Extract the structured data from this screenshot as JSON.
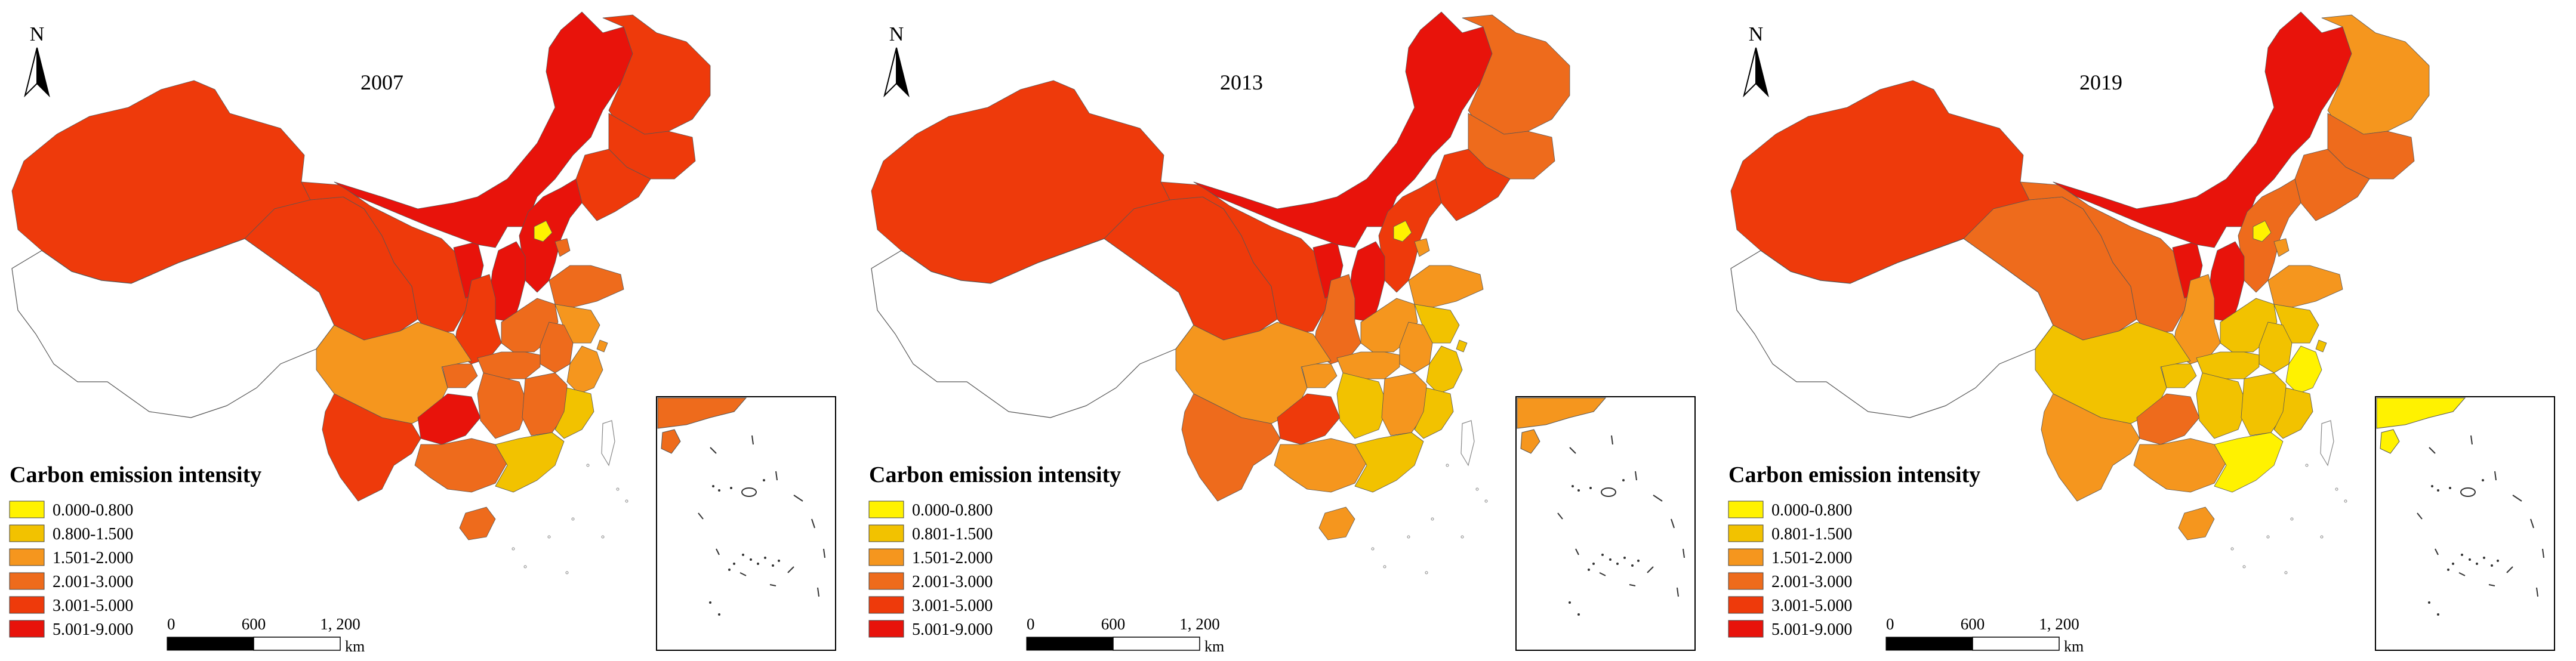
{
  "colors": {
    "c1": "#FFF200",
    "c2": "#F2C200",
    "c3": "#F5961E",
    "c4": "#EE6B1C",
    "c5": "#EE3A0B",
    "c6": "#E8130B",
    "outline": "#555555",
    "no_data": "#ffffff"
  },
  "north_label": "N",
  "scale": {
    "labels": [
      "0",
      "600",
      "1, 200"
    ],
    "unit": "km"
  },
  "panels": [
    {
      "year": "2007",
      "legend_title": "Carbon emission intensity",
      "legend_items": [
        {
          "label": "0.000-0.800",
          "color": "c1"
        },
        {
          "label": "0.800-1.500",
          "color": "c2"
        },
        {
          "label": "1.501-2.000",
          "color": "c3"
        },
        {
          "label": "2.001-3.000",
          "color": "c4"
        },
        {
          "label": "3.001-5.000",
          "color": "c5"
        },
        {
          "label": "5.001-9.000",
          "color": "c6"
        }
      ],
      "regions": {
        "xinjiang": "c5",
        "tibet": "no_data",
        "qinghai": "c5",
        "gansu": "c5",
        "ningxia": "c6",
        "inner_mongolia": "c6",
        "heilongjiang": "c5",
        "jilin": "c5",
        "liaoning": "c5",
        "hebei": "c6",
        "beijing": "c1",
        "tianjin": "c4",
        "shanxi": "c6",
        "shaanxi": "c5",
        "shandong": "c4",
        "henan": "c4",
        "jiangsu": "c3",
        "anhui": "c4",
        "hubei": "c4",
        "zhejiang": "c3",
        "shanghai": "c3",
        "sichuan": "c3",
        "chongqing": "c4",
        "guizhou": "c6",
        "yunnan": "c5",
        "hunan": "c4",
        "jiangxi": "c4",
        "fujian": "c2",
        "guangxi": "c4",
        "guangdong": "c2",
        "hainan": "c4",
        "inset_south": "c4"
      }
    },
    {
      "year": "2013",
      "legend_title": "Carbon emission intensity",
      "legend_items": [
        {
          "label": "0.000-0.800",
          "color": "c1"
        },
        {
          "label": "0.801-1.500",
          "color": "c2"
        },
        {
          "label": "1.501-2.000",
          "color": "c3"
        },
        {
          "label": "2.001-3.000",
          "color": "c4"
        },
        {
          "label": "3.001-5.000",
          "color": "c5"
        },
        {
          "label": "5.001-9.000",
          "color": "c6"
        }
      ],
      "regions": {
        "xinjiang": "c5",
        "tibet": "no_data",
        "qinghai": "c5",
        "gansu": "c5",
        "ningxia": "c6",
        "inner_mongolia": "c6",
        "heilongjiang": "c4",
        "jilin": "c4",
        "liaoning": "c5",
        "hebei": "c5",
        "beijing": "c1",
        "tianjin": "c3",
        "shanxi": "c6",
        "shaanxi": "c4",
        "shandong": "c3",
        "henan": "c3",
        "jiangsu": "c2",
        "anhui": "c3",
        "hubei": "c3",
        "zhejiang": "c2",
        "shanghai": "c2",
        "sichuan": "c3",
        "chongqing": "c3",
        "guizhou": "c5",
        "yunnan": "c4",
        "hunan": "c2",
        "jiangxi": "c3",
        "fujian": "c2",
        "guangxi": "c3",
        "guangdong": "c2",
        "hainan": "c3",
        "inset_south": "c3"
      }
    },
    {
      "year": "2019",
      "legend_title": "Carbon emission intensity",
      "legend_items": [
        {
          "label": "0.000-0.800",
          "color": "c1"
        },
        {
          "label": "0.801-1.500",
          "color": "c2"
        },
        {
          "label": "1.501-2.000",
          "color": "c3"
        },
        {
          "label": "2.001-3.000",
          "color": "c4"
        },
        {
          "label": "3.001-5.000",
          "color": "c5"
        },
        {
          "label": "5.001-9.000",
          "color": "c6"
        }
      ],
      "regions": {
        "xinjiang": "c5",
        "tibet": "no_data",
        "qinghai": "c4",
        "gansu": "c4",
        "ningxia": "c6",
        "inner_mongolia": "c6",
        "heilongjiang": "c3",
        "jilin": "c4",
        "liaoning": "c4",
        "hebei": "c4",
        "beijing": "c1",
        "tianjin": "c3",
        "shanxi": "c6",
        "shaanxi": "c3",
        "shandong": "c3",
        "henan": "c2",
        "jiangsu": "c2",
        "anhui": "c2",
        "hubei": "c2",
        "zhejiang": "c1",
        "shanghai": "c2",
        "sichuan": "c2",
        "chongqing": "c2",
        "guizhou": "c4",
        "yunnan": "c3",
        "hunan": "c2",
        "jiangxi": "c2",
        "fujian": "c2",
        "guangxi": "c3",
        "guangdong": "c1",
        "hainan": "c3",
        "inset_south": "c1"
      }
    }
  ]
}
